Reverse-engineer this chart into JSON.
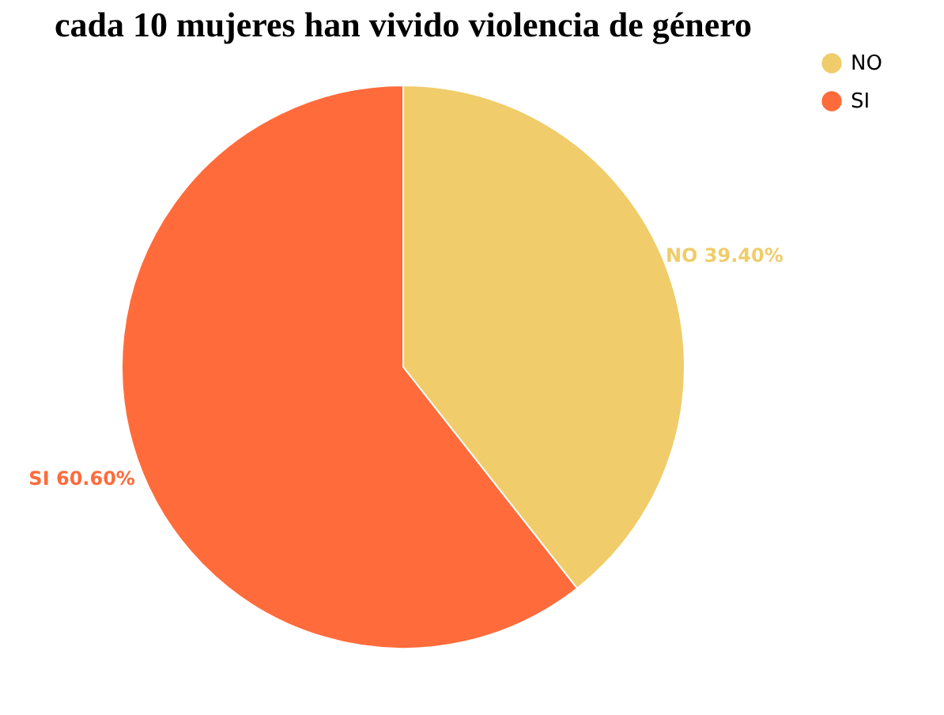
{
  "chart_data": {
    "type": "pie",
    "title": "cada 10 mujeres han vivido violencia de género",
    "categories": [
      "NO",
      "SI"
    ],
    "values": [
      39.4,
      60.6
    ],
    "colors": [
      "#f0cc6a",
      "#ff6b3b"
    ],
    "value_labels": [
      "NO 39.40%",
      "SI 60.60%"
    ],
    "legend": "right"
  }
}
